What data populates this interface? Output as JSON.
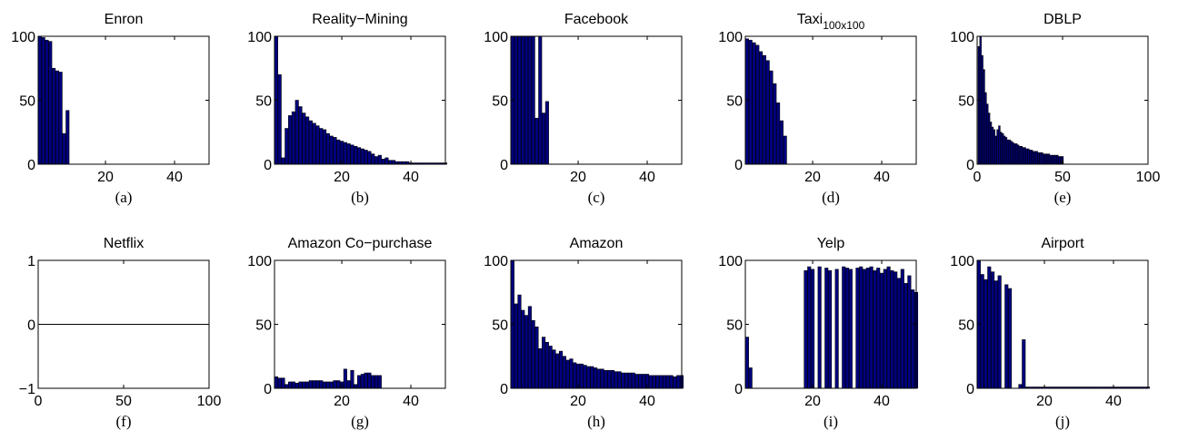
{
  "colors": {
    "bar_fill": "#000080",
    "bar_edge": "#000000",
    "axes": "#000000",
    "background": "#ffffff"
  },
  "chart_data": [
    {
      "type": "bar",
      "title": "Enron",
      "subscript": "",
      "caption": "(a)",
      "x": [
        1,
        2,
        3,
        4,
        5,
        6,
        7,
        8,
        9
      ],
      "values": [
        100,
        99,
        97,
        96,
        75,
        73,
        72,
        24,
        42
      ],
      "xlim": [
        0.5,
        50
      ],
      "ylim": [
        0,
        100
      ],
      "xticks": [
        20,
        40
      ],
      "yticks": [
        0,
        50,
        100
      ],
      "xticklabels": [
        "20",
        "40"
      ],
      "yticklabels": [
        "0",
        "50",
        "100"
      ]
    },
    {
      "type": "bar",
      "title": "Reality−Mining",
      "subscript": "",
      "caption": "(b)",
      "x": [
        1,
        2,
        3,
        4,
        5,
        6,
        7,
        8,
        9,
        10,
        11,
        12,
        13,
        14,
        15,
        16,
        17,
        18,
        19,
        20,
        21,
        22,
        23,
        24,
        25,
        26,
        27,
        28,
        29,
        30,
        31,
        32,
        33,
        34,
        35,
        36,
        37,
        38,
        39,
        40,
        41,
        42,
        43,
        44,
        45,
        46,
        47,
        48,
        49,
        50
      ],
      "values": [
        100,
        70,
        5,
        28,
        38,
        41,
        50,
        45,
        40,
        37,
        34,
        32,
        30,
        28,
        27,
        24,
        22,
        21,
        19,
        18,
        17,
        16,
        15,
        14,
        13,
        12,
        11,
        10,
        8,
        6,
        7,
        4,
        5,
        3,
        3,
        2,
        2,
        2,
        2,
        1,
        1,
        1,
        1,
        1,
        1,
        1,
        1,
        1,
        1,
        1
      ],
      "xlim": [
        0.5,
        50
      ],
      "ylim": [
        0,
        100
      ],
      "xticks": [
        20,
        40
      ],
      "yticks": [
        0,
        50,
        100
      ],
      "xticklabels": [
        "20",
        "40"
      ],
      "yticklabels": [
        "0",
        "50",
        "100"
      ]
    },
    {
      "type": "bar",
      "title": "Facebook",
      "subscript": "",
      "caption": "(c)",
      "x": [
        1,
        2,
        3,
        4,
        5,
        6,
        7,
        8,
        9,
        10,
        11
      ],
      "values": [
        100,
        100,
        100,
        100,
        100,
        100,
        100,
        36,
        100,
        40,
        49
      ],
      "xlim": [
        0.5,
        50
      ],
      "ylim": [
        0,
        100
      ],
      "xticks": [
        20,
        40
      ],
      "yticks": [
        0,
        50,
        100
      ],
      "xticklabels": [
        "20",
        "40"
      ],
      "yticklabels": [
        "0",
        "50",
        "100"
      ]
    },
    {
      "type": "bar",
      "title": "Taxi",
      "subscript": "100x100",
      "caption": "(d)",
      "x": [
        1,
        2,
        3,
        4,
        5,
        6,
        7,
        8,
        9,
        10,
        11,
        12
      ],
      "values": [
        98,
        97,
        95,
        93,
        88,
        85,
        81,
        73,
        63,
        48,
        34,
        22
      ],
      "xlim": [
        0.5,
        50
      ],
      "ylim": [
        0,
        100
      ],
      "xticks": [
        20,
        40
      ],
      "yticks": [
        0,
        50,
        100
      ],
      "xticklabels": [
        "20",
        "40"
      ],
      "yticklabels": [
        "0",
        "50",
        "100"
      ]
    },
    {
      "type": "bar",
      "title": "DBLP",
      "subscript": "",
      "caption": "(e)",
      "x": [
        1,
        2,
        3,
        4,
        5,
        6,
        7,
        8,
        9,
        10,
        11,
        12,
        13,
        14,
        15,
        16,
        17,
        18,
        19,
        20,
        21,
        22,
        23,
        24,
        25,
        26,
        27,
        28,
        29,
        30,
        31,
        32,
        33,
        34,
        35,
        36,
        37,
        38,
        39,
        40,
        41,
        42,
        43,
        44,
        45,
        46,
        47,
        48,
        49,
        50
      ],
      "values": [
        92,
        100,
        85,
        74,
        56,
        47,
        40,
        33,
        29,
        27,
        22,
        27,
        30,
        25,
        24,
        22,
        21,
        19,
        19,
        18,
        17,
        16,
        16,
        15,
        14,
        14,
        13,
        13,
        12,
        12,
        11,
        11,
        10,
        10,
        10,
        9,
        9,
        9,
        8,
        8,
        8,
        8,
        7,
        7,
        7,
        7,
        7,
        6,
        6,
        6
      ],
      "xlim": [
        0,
        100
      ],
      "ylim": [
        0,
        100
      ],
      "xticks": [
        0,
        50,
        100
      ],
      "yticks": [
        0,
        50,
        100
      ],
      "xticklabels": [
        "0",
        "50",
        "100"
      ],
      "yticklabels": [
        "0",
        "50",
        "100"
      ]
    },
    {
      "type": "bar",
      "title": "Netflix",
      "subscript": "",
      "caption": "(f)",
      "x": [],
      "values": [],
      "xlim": [
        0,
        100
      ],
      "ylim": [
        -1,
        1
      ],
      "xticks": [
        0,
        50,
        100
      ],
      "yticks": [
        -1,
        0,
        1
      ],
      "xticklabels": [
        "0",
        "50",
        "100"
      ],
      "yticklabels": [
        "−1",
        "0",
        "1"
      ]
    },
    {
      "type": "bar",
      "title": "Amazon Co−purchase",
      "subscript": "",
      "caption": "(g)",
      "x": [
        1,
        2,
        3,
        4,
        5,
        6,
        7,
        8,
        9,
        10,
        11,
        12,
        13,
        14,
        15,
        16,
        17,
        18,
        19,
        20,
        21,
        22,
        23,
        24,
        25,
        26,
        27,
        28,
        29,
        30,
        31
      ],
      "values": [
        9,
        8,
        8,
        3,
        5,
        5,
        4,
        5,
        5,
        5,
        6,
        6,
        6,
        6,
        5,
        5,
        5,
        6,
        6,
        5,
        15,
        6,
        14,
        3,
        10,
        11,
        12,
        12,
        10,
        10,
        10
      ],
      "xlim": [
        0.5,
        50
      ],
      "ylim": [
        0,
        100
      ],
      "xticks": [
        20,
        40
      ],
      "yticks": [
        0,
        50,
        100
      ],
      "xticklabels": [
        "20",
        "40"
      ],
      "yticklabels": [
        "0",
        "50",
        "100"
      ]
    },
    {
      "type": "bar",
      "title": "Amazon",
      "subscript": "",
      "caption": "(h)",
      "x": [
        1,
        2,
        3,
        4,
        5,
        6,
        7,
        8,
        9,
        10,
        11,
        12,
        13,
        14,
        15,
        16,
        17,
        18,
        19,
        20,
        21,
        22,
        23,
        24,
        25,
        26,
        27,
        28,
        29,
        30,
        31,
        32,
        33,
        34,
        35,
        36,
        37,
        38,
        39,
        40,
        41,
        42,
        43,
        44,
        45,
        46,
        47,
        48,
        49,
        50
      ],
      "values": [
        100,
        66,
        73,
        61,
        57,
        64,
        53,
        48,
        31,
        40,
        36,
        33,
        30,
        27,
        29,
        25,
        22,
        23,
        20,
        19,
        19,
        18,
        17,
        17,
        16,
        15,
        15,
        14,
        14,
        14,
        13,
        13,
        12,
        12,
        12,
        12,
        11,
        11,
        11,
        11,
        10,
        10,
        10,
        10,
        10,
        10,
        10,
        9,
        10,
        10
      ],
      "xlim": [
        0.5,
        50
      ],
      "ylim": [
        0,
        100
      ],
      "xticks": [
        20,
        40
      ],
      "yticks": [
        0,
        50,
        100
      ],
      "xticklabels": [
        "20",
        "40"
      ],
      "yticklabels": [
        "0",
        "50",
        "100"
      ]
    },
    {
      "type": "bar",
      "title": "Yelp",
      "subscript": "",
      "caption": "(i)",
      "x": [
        1,
        2,
        3,
        4,
        5,
        6,
        7,
        8,
        9,
        10,
        11,
        12,
        13,
        14,
        15,
        16,
        17,
        18,
        19,
        20,
        21,
        22,
        23,
        24,
        25,
        26,
        27,
        28,
        29,
        30,
        31,
        32,
        33,
        34,
        35,
        36,
        37,
        38,
        39,
        40,
        41,
        42,
        43,
        44,
        45,
        46,
        47,
        48,
        49,
        50
      ],
      "values": [
        40,
        16,
        0,
        0,
        0,
        0,
        0,
        0,
        0,
        0,
        0,
        0,
        0,
        0,
        0,
        0,
        0,
        92,
        95,
        93,
        0,
        95,
        0,
        94,
        92,
        0,
        93,
        0,
        95,
        94,
        93,
        0,
        94,
        95,
        93,
        94,
        95,
        92,
        94,
        90,
        93,
        95,
        92,
        91,
        86,
        93,
        82,
        88,
        77,
        75
      ],
      "xlim": [
        0.5,
        50
      ],
      "ylim": [
        0,
        100
      ],
      "xticks": [
        20,
        40
      ],
      "yticks": [
        0,
        50,
        100
      ],
      "xticklabels": [
        "20",
        "40"
      ],
      "yticklabels": [
        "0",
        "50",
        "100"
      ]
    },
    {
      "type": "bar",
      "title": "Airport",
      "subscript": "",
      "caption": "(j)",
      "x": [
        1,
        2,
        3,
        4,
        5,
        6,
        7,
        8,
        9,
        10,
        11,
        12,
        13,
        14,
        15,
        16,
        17,
        18,
        19,
        20,
        21,
        22,
        23,
        24,
        25,
        26,
        27,
        28,
        29,
        30,
        31,
        32,
        33,
        34,
        35,
        36,
        37,
        38,
        39,
        40,
        41,
        42,
        43,
        44,
        45,
        46,
        47,
        48,
        49,
        50
      ],
      "values": [
        100,
        89,
        85,
        95,
        91,
        84,
        88,
        0,
        81,
        78,
        0,
        0,
        3,
        38,
        1,
        1,
        1,
        1,
        1,
        1,
        1,
        1,
        1,
        1,
        1,
        1,
        1,
        1,
        1,
        1,
        1,
        1,
        1,
        1,
        1,
        1,
        1,
        1,
        1,
        1,
        1,
        1,
        1,
        1,
        1,
        1,
        1,
        1,
        1,
        1
      ],
      "xlim": [
        0.5,
        50
      ],
      "ylim": [
        0,
        100
      ],
      "xticks": [
        20,
        40
      ],
      "yticks": [
        0,
        50,
        100
      ],
      "xticklabels": [
        "20",
        "40"
      ],
      "yticklabels": [
        "0",
        "50",
        "100"
      ]
    }
  ]
}
